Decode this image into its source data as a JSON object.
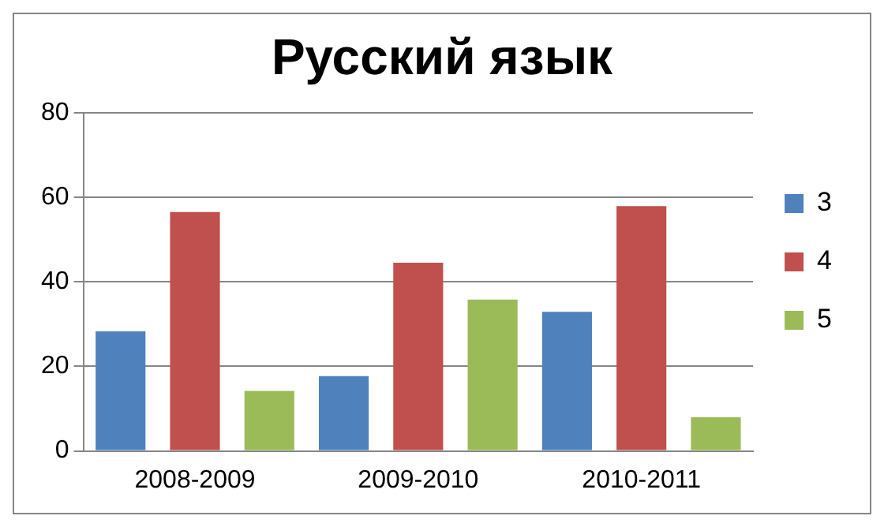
{
  "chart_data": {
    "type": "bar",
    "title": "Русский язык",
    "categories": [
      "2008-2009",
      "2009-2010",
      "2010-2011"
    ],
    "series": [
      {
        "name": "3",
        "color": "#4f81bd",
        "values": [
          28.3,
          17.7,
          32.9
        ]
      },
      {
        "name": "4",
        "color": "#c0504d",
        "values": [
          56.5,
          44.5,
          57.9
        ]
      },
      {
        "name": "5",
        "color": "#9bbb59",
        "values": [
          14.2,
          35.8,
          8.0
        ]
      }
    ],
    "ylim": [
      0,
      80
    ],
    "yticks": [
      0,
      20,
      40,
      60,
      80
    ],
    "grid": "y",
    "legend": "right"
  }
}
